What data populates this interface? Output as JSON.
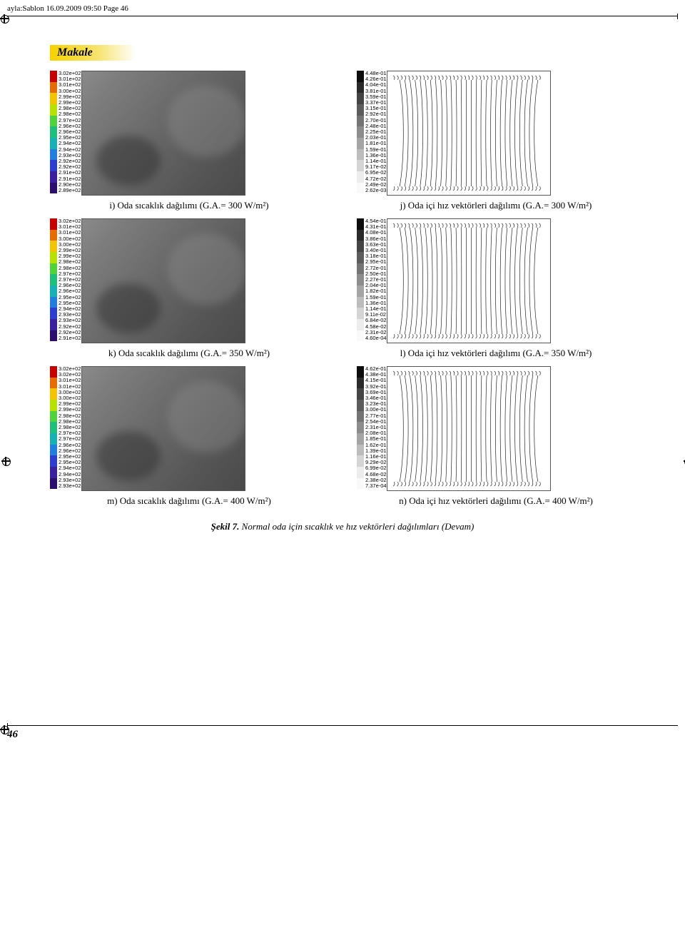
{
  "header_text": "ayla:Sablon  16.09.2009  09:50  Page 46",
  "section_label": "Makale",
  "page_number": "46",
  "temp_palette": [
    "#c70000",
    "#e86b00",
    "#f5c400",
    "#b7e200",
    "#4fd23a",
    "#1fbf7b",
    "#17b0b5",
    "#1f7ee0",
    "#2a3fd0",
    "#3a1fa0",
    "#2a0f70"
  ],
  "vec_palette": [
    "#0d0d0d",
    "#2a2a2a",
    "#444444",
    "#5c5c5c",
    "#747474",
    "#8c8c8c",
    "#a4a4a4",
    "#bcbcbc",
    "#d4d4d4",
    "#ececec",
    "#f9f9f9"
  ],
  "panels": {
    "i": {
      "kind": "temp",
      "caption": "i) Oda sıcaklık dağılımı (G.A.= 300 W/m²)",
      "labels": [
        "3.02e+02",
        "3.01e+02",
        "3.01e+02",
        "3.00e+02",
        "2.99e+02",
        "2.99e+02",
        "2.98e+02",
        "2.98e+02",
        "2.97e+02",
        "2.96e+02",
        "2.96e+02",
        "2.95e+02",
        "2.94e+02",
        "2.94e+02",
        "2.93e+02",
        "2.92e+02",
        "2.92e+02",
        "2.91e+02",
        "2.91e+02",
        "2.90e+02",
        "2.89e+02"
      ]
    },
    "j": {
      "kind": "vec",
      "caption": "j) Oda içi hız vektörleri dağılımı (G.A.= 300 W/m²)",
      "labels": [
        "4.48e-01",
        "4.26e-01",
        "4.04e-01",
        "3.81e-01",
        "3.59e-01",
        "3.37e-01",
        "3.15e-01",
        "2.92e-01",
        "2.70e-01",
        "2.48e-01",
        "2.25e-01",
        "2.03e-01",
        "1.81e-01",
        "1.59e-01",
        "1.36e-01",
        "1.14e-01",
        "9.17e-02",
        "6.95e-02",
        "4.72e-02",
        "2.49e-02",
        "2.62e-03"
      ]
    },
    "k": {
      "kind": "temp",
      "caption": "k) Oda sıcaklık dağılımı (G.A.= 350 W/m²)",
      "labels": [
        "3.02e+02",
        "3.01e+02",
        "3.01e+02",
        "3.00e+02",
        "3.00e+02",
        "2.99e+02",
        "2.99e+02",
        "2.98e+02",
        "2.98e+02",
        "2.97e+02",
        "2.97e+02",
        "2.96e+02",
        "2.96e+02",
        "2.95e+02",
        "2.95e+02",
        "2.94e+02",
        "2.93e+02",
        "2.93e+02",
        "2.92e+02",
        "2.92e+02",
        "2.91e+02"
      ]
    },
    "l": {
      "kind": "vec",
      "caption": "l) Oda içi hız vektörleri dağılımı (G.A.= 350 W/m²)",
      "labels": [
        "4.54e-01",
        "4.31e-01",
        "4.08e-01",
        "3.86e-01",
        "3.63e-01",
        "3.40e-01",
        "3.18e-01",
        "2.95e-01",
        "2.72e-01",
        "2.50e-01",
        "2.27e-01",
        "2.04e-01",
        "1.82e-01",
        "1.59e-01",
        "1.36e-01",
        "1.14e-01",
        "9.11e-02",
        "6.84e-02",
        "4.58e-02",
        "2.31e-02",
        "4.60e-04"
      ]
    },
    "m": {
      "kind": "temp",
      "caption": "m) Oda sıcaklık dağılımı (G.A.= 400 W/m²)",
      "labels": [
        "3.02e+02",
        "3.02e+02",
        "3.01e+02",
        "3.01e+02",
        "3.00e+02",
        "3.00e+02",
        "2.99e+02",
        "2.99e+02",
        "2.98e+02",
        "2.98e+02",
        "2.98e+02",
        "2.97e+02",
        "2.97e+02",
        "2.96e+02",
        "2.96e+02",
        "2.95e+02",
        "2.95e+02",
        "2.94e+02",
        "2.94e+02",
        "2.93e+02",
        "2.93e+02"
      ]
    },
    "n": {
      "kind": "vec",
      "caption": "n) Oda içi hız vektörleri dağılımı (G.A.= 400 W/m²)",
      "labels": [
        "4.62e-01",
        "4.38e-01",
        "4.15e-01",
        "3.92e-01",
        "3.69e-01",
        "3.46e-01",
        "3.23e-01",
        "3.00e-01",
        "2.77e-01",
        "2.54e-01",
        "2.31e-01",
        "2.08e-01",
        "1.85e-01",
        "1.62e-01",
        "1.39e-01",
        "1.16e-01",
        "9.29e-02",
        "6.99e-02",
        "4.68e-02",
        "2.38e-02",
        "7.37e-04"
      ]
    }
  },
  "figure_caption_bold": "Şekil 7.",
  "figure_caption_rest": " Normal oda için sıcaklık ve hız vektörleri dağılımları (Devam)"
}
